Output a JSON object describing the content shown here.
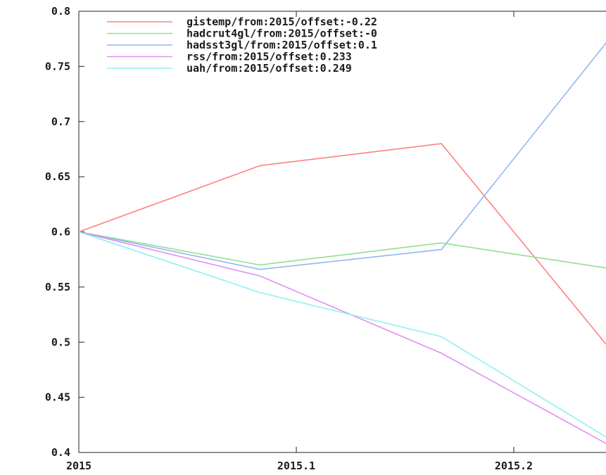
{
  "chart_data": {
    "type": "line",
    "title": "",
    "xlabel": "",
    "ylabel": "",
    "xlim": [
      2015.0,
      2015.22
    ],
    "ylim": [
      0.4,
      0.8
    ],
    "x_ticks": [
      {
        "value": 2015.0,
        "label": "2015"
      },
      {
        "value": 2015.1,
        "label": "2015.1"
      },
      {
        "value": 2015.2,
        "label": "2015.2"
      }
    ],
    "y_ticks": [
      {
        "value": 0.4,
        "label": "0.4"
      },
      {
        "value": 0.45,
        "label": "0.45"
      },
      {
        "value": 0.5,
        "label": "0.5"
      },
      {
        "value": 0.55,
        "label": "0.55"
      },
      {
        "value": 0.6,
        "label": "0.6"
      },
      {
        "value": 0.65,
        "label": "0.65"
      },
      {
        "value": 0.7,
        "label": "0.7"
      },
      {
        "value": 0.75,
        "label": "0.75"
      },
      {
        "value": 0.8,
        "label": "0.8"
      }
    ],
    "grid": false,
    "legend_position": "top-right",
    "series": [
      {
        "name": "gistemp/from:2015/offset:-0.22",
        "color": "#ff8080",
        "x": [
          2015.0,
          2015.0833,
          2015.1667,
          2015.25
        ],
        "y": [
          0.6,
          0.66,
          0.68,
          0.48
        ]
      },
      {
        "name": "hadcrut4gl/from:2015/offset:-0",
        "color": "#90e090",
        "x": [
          2015.0,
          2015.0833,
          2015.1667,
          2015.25
        ],
        "y": [
          0.6,
          0.57,
          0.59,
          0.565
        ]
      },
      {
        "name": "hadsst3gl/from:2015/offset:0.1",
        "color": "#90b8f0",
        "x": [
          2015.0,
          2015.0833,
          2015.1667,
          2015.25
        ],
        "y": [
          0.6,
          0.566,
          0.584,
          0.79
        ]
      },
      {
        "name": "rss/from:2015/offset:0.233",
        "color": "#e090f0",
        "x": [
          2015.0,
          2015.0833,
          2015.1667,
          2015.25
        ],
        "y": [
          0.6,
          0.56,
          0.49,
          0.4
        ]
      },
      {
        "name": "uah/from:2015/offset:0.249",
        "color": "#90f0f0",
        "x": [
          2015.0,
          2015.0833,
          2015.1667,
          2015.25
        ],
        "y": [
          0.6,
          0.545,
          0.505,
          0.405
        ]
      }
    ]
  }
}
